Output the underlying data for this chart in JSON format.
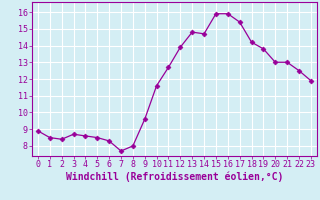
{
  "x": [
    0,
    1,
    2,
    3,
    4,
    5,
    6,
    7,
    8,
    9,
    10,
    11,
    12,
    13,
    14,
    15,
    16,
    17,
    18,
    19,
    20,
    21,
    22,
    23
  ],
  "y": [
    8.9,
    8.5,
    8.4,
    8.7,
    8.6,
    8.5,
    8.3,
    7.7,
    8.0,
    9.6,
    11.6,
    12.7,
    13.9,
    14.8,
    14.7,
    15.9,
    15.9,
    15.4,
    14.2,
    13.8,
    13.0,
    13.0,
    12.5,
    11.9
  ],
  "line_color": "#990099",
  "marker": "D",
  "marker_size": 2.5,
  "bg_color": "#d4eef4",
  "grid_color": "#b8d8e0",
  "xlabel": "Windchill (Refroidissement éolien,°C)",
  "ylim": [
    7.4,
    16.6
  ],
  "yticks": [
    8,
    9,
    10,
    11,
    12,
    13,
    14,
    15,
    16
  ],
  "xticks": [
    0,
    1,
    2,
    3,
    4,
    5,
    6,
    7,
    8,
    9,
    10,
    11,
    12,
    13,
    14,
    15,
    16,
    17,
    18,
    19,
    20,
    21,
    22,
    23
  ],
  "tick_fontsize": 6,
  "xlabel_fontsize": 7
}
